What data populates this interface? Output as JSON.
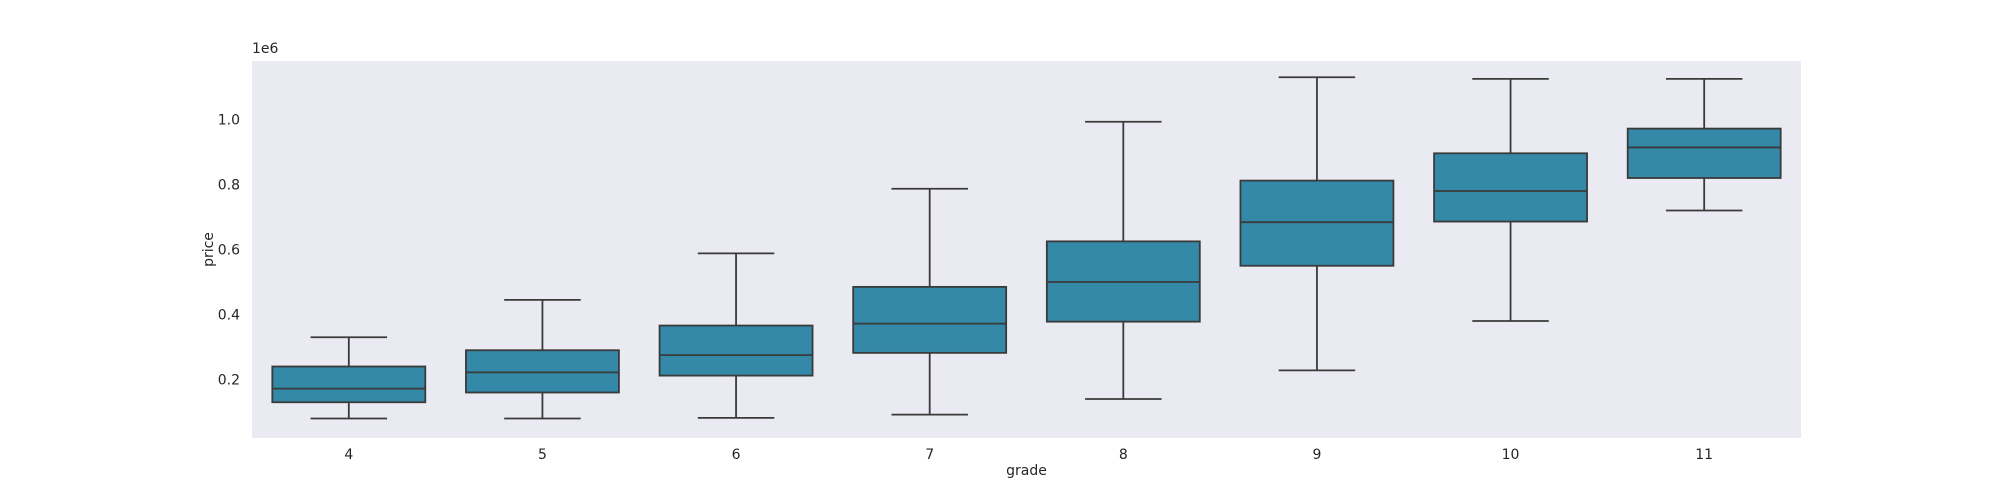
{
  "chart_data": {
    "type": "box",
    "xlabel": "grade",
    "ylabel": "price",
    "y_offset_label": "1e6",
    "y_ticks": [
      0.2,
      0.4,
      0.6,
      0.8,
      1.0
    ],
    "y_tick_labels": [
      "0.2",
      "0.4",
      "0.6",
      "0.8",
      "1.0"
    ],
    "ylim": [
      0.02,
      1.18
    ],
    "grid": false,
    "colors": {
      "plot_background": "#eaeaf2",
      "box_fill": "#3488a8",
      "box_edge": "#3a3a3a"
    },
    "categories": [
      "4",
      "5",
      "6",
      "7",
      "8",
      "9",
      "10",
      "11"
    ],
    "boxes": [
      {
        "category": "4",
        "whisker_low": 0.08,
        "q1": 0.13,
        "median": 0.172,
        "q3": 0.24,
        "whisker_high": 0.33
      },
      {
        "category": "5",
        "whisker_low": 0.08,
        "q1": 0.16,
        "median": 0.222,
        "q3": 0.29,
        "whisker_high": 0.445
      },
      {
        "category": "6",
        "whisker_low": 0.082,
        "q1": 0.212,
        "median": 0.275,
        "q3": 0.366,
        "whisker_high": 0.588
      },
      {
        "category": "7",
        "whisker_low": 0.092,
        "q1": 0.282,
        "median": 0.372,
        "q3": 0.485,
        "whisker_high": 0.787
      },
      {
        "category": "8",
        "whisker_low": 0.14,
        "q1": 0.378,
        "median": 0.5,
        "q3": 0.625,
        "whisker_high": 0.993
      },
      {
        "category": "9",
        "whisker_low": 0.228,
        "q1": 0.55,
        "median": 0.684,
        "q3": 0.812,
        "whisker_high": 1.13
      },
      {
        "category": "10",
        "whisker_low": 0.38,
        "q1": 0.686,
        "median": 0.78,
        "q3": 0.896,
        "whisker_high": 1.125
      },
      {
        "category": "11",
        "whisker_low": 0.72,
        "q1": 0.82,
        "median": 0.914,
        "q3": 0.972,
        "whisker_high": 1.125
      }
    ]
  }
}
